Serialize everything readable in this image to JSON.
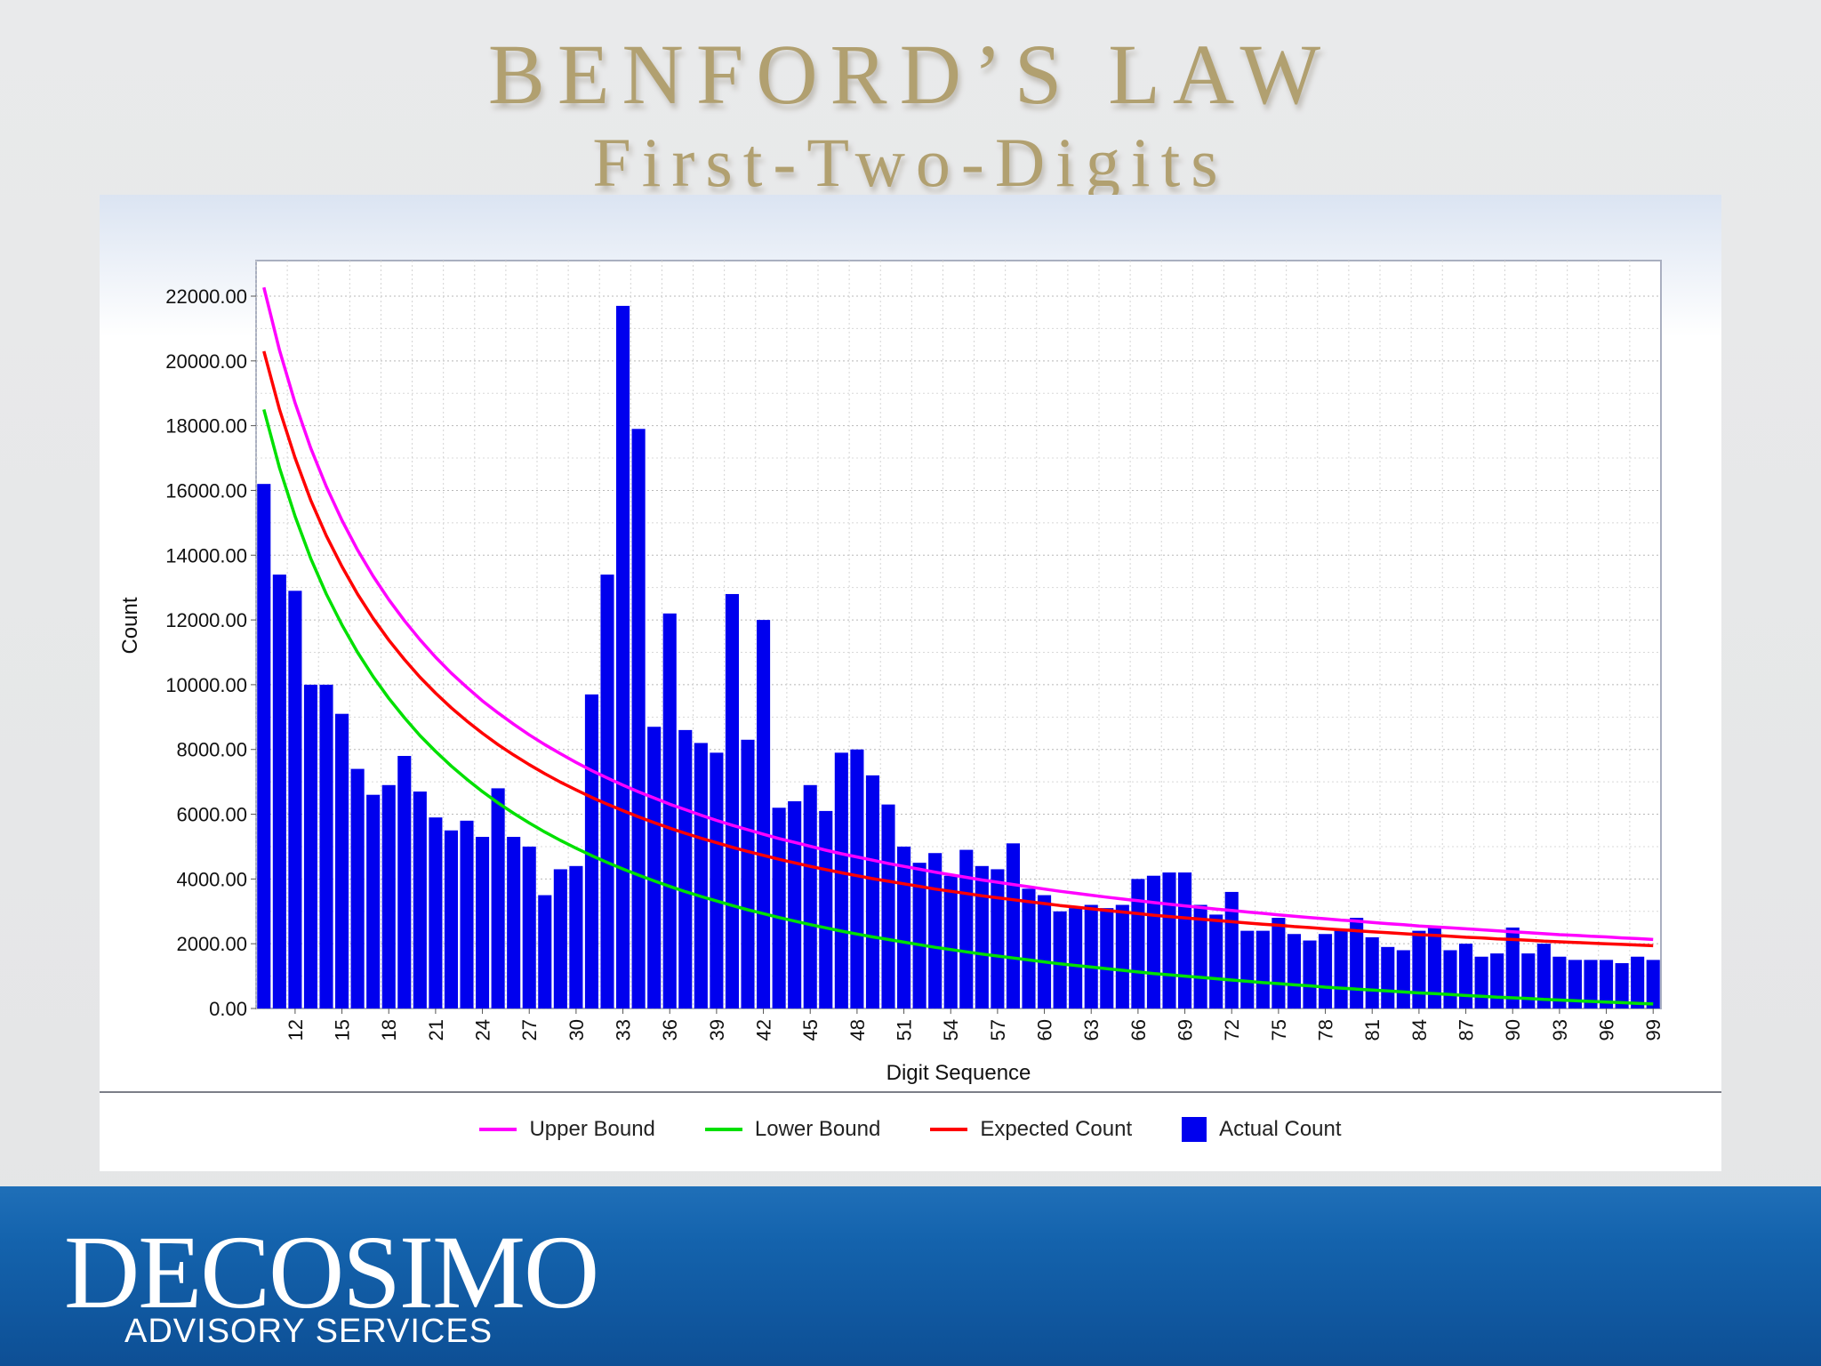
{
  "slide": {
    "title_line1": "BENFORD’S LAW",
    "title_line2": "First-Two-Digits"
  },
  "branding": {
    "name": "DECOSIMO",
    "subtitle": "ADVISORY SERVICES"
  },
  "colors": {
    "title": "#b1a070",
    "bar": "#0000ee",
    "upper": "#ff00ff",
    "lower": "#00e000",
    "expected": "#ff0000",
    "footer": "#1463ad"
  },
  "legend": [
    {
      "label": "Upper Bound",
      "kind": "line",
      "color": "#ff00ff"
    },
    {
      "label": "Lower Bound",
      "kind": "line",
      "color": "#00e000"
    },
    {
      "label": "Expected Count",
      "kind": "line",
      "color": "#ff0000"
    },
    {
      "label": "Actual Count",
      "kind": "box",
      "color": "#0000ee"
    }
  ],
  "chart_data": {
    "type": "bar",
    "xlabel": "Digit Sequence",
    "ylabel": "Count",
    "ylim": [
      0,
      22000
    ],
    "yticks": [
      0,
      2000,
      4000,
      6000,
      8000,
      10000,
      12000,
      14000,
      16000,
      18000,
      20000,
      22000
    ],
    "ytick_labels": [
      "0.00",
      "2000.00",
      "4000.00",
      "6000.00",
      "8000.00",
      "10000.00",
      "12000.00",
      "14000.00",
      "16000.00",
      "18000.00",
      "20000.00",
      "22000.00"
    ],
    "xtick_labels": [
      "12",
      "15",
      "18",
      "21",
      "24",
      "27",
      "30",
      "33",
      "36",
      "39",
      "42",
      "45",
      "48",
      "51",
      "54",
      "57",
      "60",
      "63",
      "66",
      "69",
      "72",
      "75",
      "78",
      "81",
      "84",
      "87",
      "90",
      "93",
      "96",
      "99"
    ],
    "categories": [
      10,
      11,
      12,
      13,
      14,
      15,
      16,
      17,
      18,
      19,
      20,
      21,
      22,
      23,
      24,
      25,
      26,
      27,
      28,
      29,
      30,
      31,
      32,
      33,
      34,
      35,
      36,
      37,
      38,
      39,
      40,
      41,
      42,
      43,
      44,
      45,
      46,
      47,
      48,
      49,
      50,
      51,
      52,
      53,
      54,
      55,
      56,
      57,
      58,
      59,
      60,
      61,
      62,
      63,
      64,
      65,
      66,
      67,
      68,
      69,
      70,
      71,
      72,
      73,
      74,
      75,
      76,
      77,
      78,
      79,
      80,
      81,
      82,
      83,
      84,
      85,
      86,
      87,
      88,
      89,
      90,
      91,
      92,
      93,
      94,
      95,
      96,
      97,
      98,
      99
    ],
    "series": [
      {
        "name": "Actual Count",
        "type": "bar",
        "color": "#0000ee",
        "values": [
          16200,
          13400,
          12900,
          10000,
          10000,
          9100,
          7400,
          6600,
          6900,
          7800,
          6700,
          5900,
          5500,
          5800,
          5300,
          6800,
          5300,
          5000,
          3500,
          4300,
          4400,
          9700,
          13400,
          21700,
          17900,
          8700,
          12200,
          8600,
          8200,
          7900,
          12800,
          8300,
          12000,
          6200,
          6400,
          6900,
          6100,
          7900,
          8000,
          7200,
          6300,
          5000,
          4500,
          4800,
          4100,
          4900,
          4400,
          4300,
          5100,
          3700,
          3500,
          3000,
          3100,
          3200,
          3100,
          3200,
          4000,
          4100,
          4200,
          4200,
          3200,
          2900,
          3600,
          2400,
          2400,
          2800,
          2300,
          2100,
          2300,
          2400,
          2800,
          2200,
          1900,
          1800,
          2400,
          2500,
          1800,
          2000,
          1600,
          1700,
          2500,
          1700,
          2000,
          1600,
          1500,
          1500,
          1500,
          1400,
          1600,
          1500
        ]
      },
      {
        "name": "Upper Bound",
        "type": "line",
        "color": "#ff00ff",
        "values": [
          22270,
          20330,
          18700,
          17310,
          16120,
          15080,
          14160,
          13350,
          12630,
          11980,
          11390,
          10850,
          10360,
          9920,
          9500,
          9130,
          8780,
          8450,
          8150,
          7870,
          7600,
          7350,
          7120,
          6900,
          6690,
          6500,
          6310,
          6140,
          5970,
          5810,
          5660,
          5520,
          5380,
          5250,
          5130,
          5010,
          4890,
          4780,
          4680,
          4580,
          4480,
          4390,
          4300,
          4210,
          4130,
          4050,
          3970,
          3900,
          3830,
          3760,
          3690,
          3620,
          3560,
          3500,
          3440,
          3380,
          3330,
          3270,
          3220,
          3170,
          3120,
          3070,
          3030,
          2980,
          2940,
          2890,
          2850,
          2810,
          2770,
          2730,
          2700,
          2660,
          2620,
          2590,
          2550,
          2520,
          2490,
          2460,
          2430,
          2400,
          2370,
          2340,
          2310,
          2280,
          2260,
          2230,
          2210,
          2180,
          2160,
          2130
        ]
      },
      {
        "name": "Expected Count",
        "type": "line",
        "color": "#ff0000",
        "values": [
          20300,
          18500,
          17000,
          15700,
          14600,
          13650,
          12800,
          12050,
          11380,
          10780,
          10230,
          9740,
          9290,
          8880,
          8500,
          8150,
          7830,
          7530,
          7250,
          6990,
          6750,
          6520,
          6310,
          6110,
          5920,
          5740,
          5570,
          5410,
          5260,
          5120,
          4980,
          4850,
          4730,
          4610,
          4500,
          4390,
          4290,
          4190,
          4100,
          4010,
          3930,
          3850,
          3770,
          3690,
          3620,
          3550,
          3480,
          3420,
          3360,
          3300,
          3240,
          3180,
          3130,
          3080,
          3030,
          2980,
          2930,
          2880,
          2840,
          2800,
          2760,
          2720,
          2680,
          2640,
          2600,
          2570,
          2530,
          2500,
          2460,
          2430,
          2400,
          2370,
          2340,
          2310,
          2280,
          2260,
          2230,
          2200,
          2180,
          2150,
          2130,
          2110,
          2080,
          2060,
          2040,
          2020,
          2000,
          1980,
          1960,
          1940
        ]
      },
      {
        "name": "Lower Bound",
        "type": "line",
        "color": "#00e000",
        "values": [
          18500,
          16700,
          15200,
          13900,
          12800,
          11850,
          11000,
          10250,
          9580,
          8980,
          8430,
          7940,
          7490,
          7080,
          6700,
          6350,
          6030,
          5730,
          5450,
          5190,
          4950,
          4720,
          4510,
          4310,
          4120,
          3940,
          3770,
          3610,
          3460,
          3320,
          3180,
          3050,
          2930,
          2810,
          2700,
          2590,
          2490,
          2390,
          2300,
          2210,
          2130,
          2050,
          1970,
          1890,
          1820,
          1750,
          1680,
          1620,
          1560,
          1500,
          1440,
          1380,
          1330,
          1280,
          1230,
          1180,
          1130,
          1080,
          1040,
          1000,
          960,
          920,
          880,
          840,
          800,
          770,
          730,
          700,
          660,
          630,
          600,
          570,
          540,
          510,
          480,
          460,
          430,
          400,
          380,
          350,
          330,
          310,
          280,
          260,
          240,
          220,
          200,
          180,
          160,
          140
        ]
      }
    ]
  }
}
